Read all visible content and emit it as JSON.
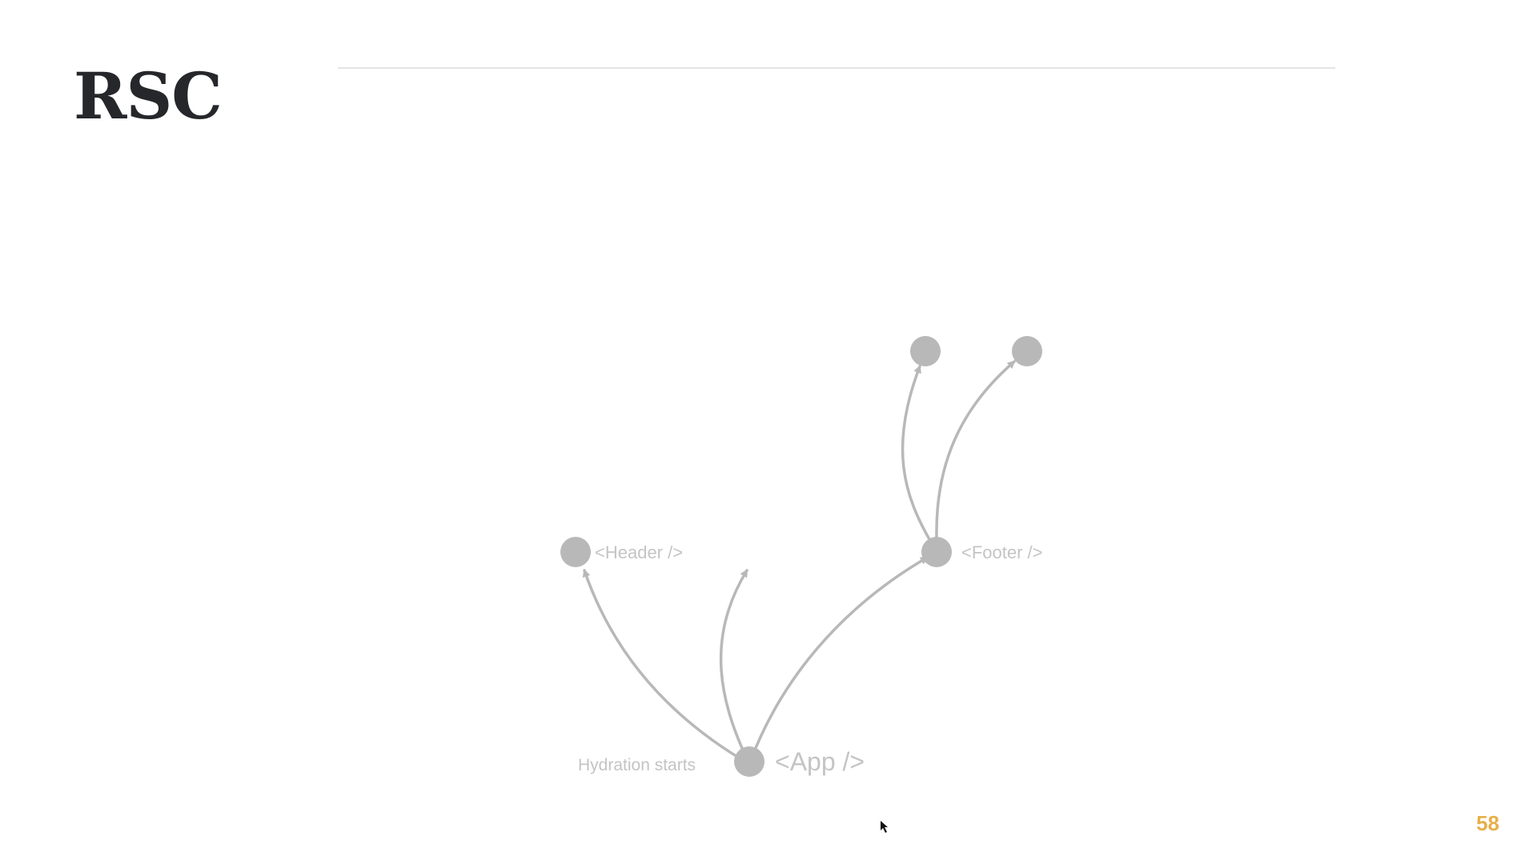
{
  "slide": {
    "title": "RSC",
    "page_number": "58"
  },
  "diagram": {
    "annotation": "Hydration starts",
    "nodes": [
      {
        "id": "app",
        "label": "<App />"
      },
      {
        "id": "header",
        "label": "<Header />"
      },
      {
        "id": "footer",
        "label": "<Footer />"
      },
      {
        "id": "footer-child-1",
        "label": ""
      },
      {
        "id": "footer-child-2",
        "label": ""
      }
    ],
    "edges": [
      {
        "from": "app",
        "to": "header"
      },
      {
        "from": "app",
        "to": ""
      },
      {
        "from": "app",
        "to": "footer"
      },
      {
        "from": "footer",
        "to": "footer-child-1"
      },
      {
        "from": "footer",
        "to": "footer-child-2"
      }
    ],
    "colors": {
      "node": "#b8b8b8",
      "edge": "#b8b8b8",
      "label": "#c4c4c4"
    }
  },
  "colors": {
    "accent": "#e8b04a",
    "title": "#26272b",
    "rule": "#e4e4e4"
  },
  "icons": {
    "cursor": "mouse-pointer-icon"
  }
}
